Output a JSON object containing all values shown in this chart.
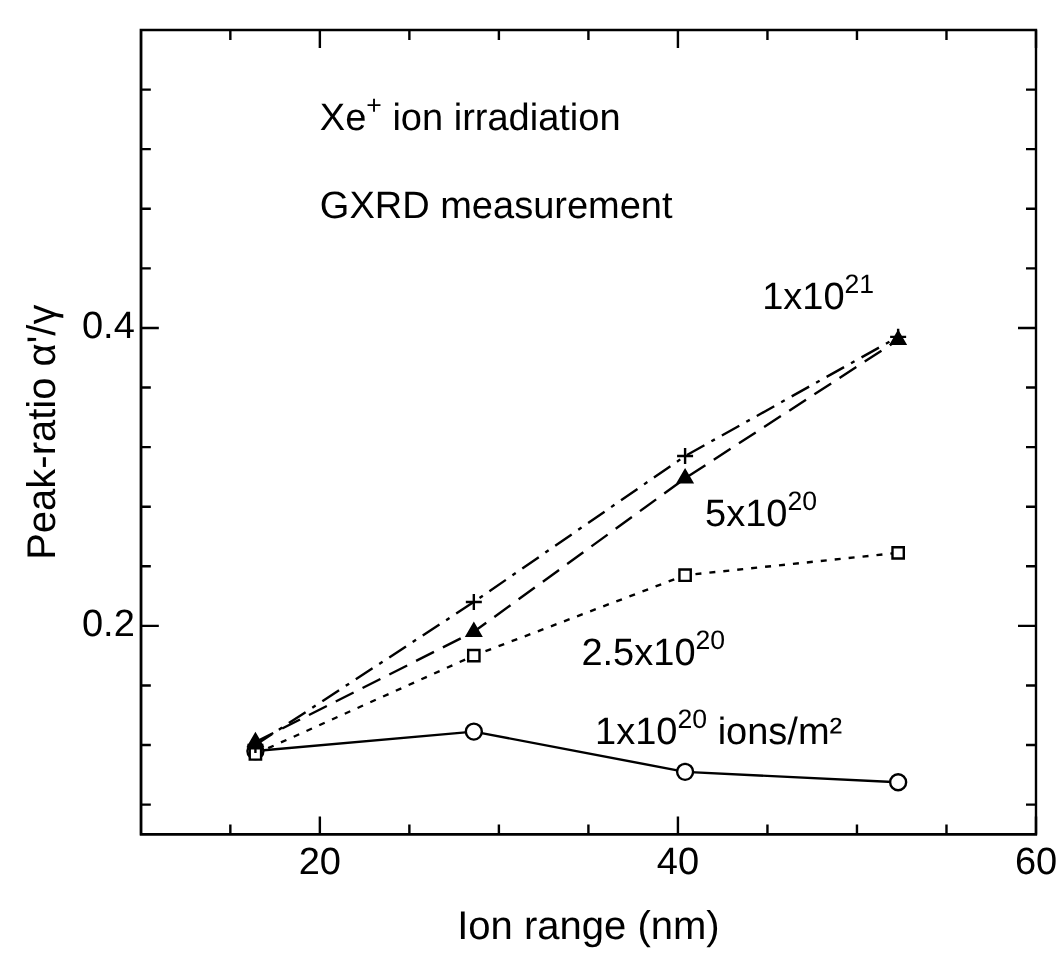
{
  "chart_data": {
    "type": "line",
    "xlabel": "Ion range (nm)",
    "ylabel": "Peak-ratio α'/γ",
    "x": [
      16.4,
      28.6,
      40.4,
      52.3
    ],
    "series": [
      {
        "name": "1x10$^{21}$",
        "color": "#000000",
        "marker": "cross",
        "line_style": "dashdot",
        "values": [
          0.12,
          0.216,
          0.314,
          0.394
        ]
      },
      {
        "name": "5x10$^{20}$",
        "color": "#000000",
        "marker": "triangle",
        "line_style": "dashed",
        "values": [
          0.122,
          0.196,
          0.299,
          0.392
        ]
      },
      {
        "name": "2.5x10$^{20}$",
        "color": "#000000",
        "marker": "square",
        "line_style": "dotted",
        "values": [
          0.114,
          0.18,
          0.234,
          0.249
        ]
      },
      {
        "name": "1x10$^{20}$ ions/m²",
        "color": "#000000",
        "marker": "circle",
        "line_style": "solid",
        "values": [
          0.116,
          0.129,
          0.102,
          0.095
        ]
      }
    ],
    "xlim": [
      10,
      60
    ],
    "xticks": [
      {
        "value": 15,
        "label": null
      },
      20,
      {
        "value": 25,
        "label": null
      },
      {
        "value": 30,
        "label": null
      },
      {
        "value": 35,
        "label": null
      },
      40,
      {
        "value": 45,
        "label": null
      },
      {
        "value": 50,
        "label": null
      },
      {
        "value": 55,
        "label": null
      },
      60
    ],
    "ylim": [
      0.06,
      0.6
    ],
    "yticks": [
      {
        "value": 0.08,
        "label": null
      },
      {
        "value": 0.12,
        "label": null
      },
      {
        "value": 0.16,
        "label": null
      },
      0.2,
      {
        "value": 0.24,
        "label": null
      },
      {
        "value": 0.28,
        "label": null
      },
      {
        "value": 0.32,
        "label": null
      },
      {
        "value": 0.36,
        "label": null
      },
      0.4,
      {
        "value": 0.44,
        "label": null
      },
      {
        "value": 0.48,
        "label": null
      },
      {
        "value": 0.52,
        "label": null
      },
      {
        "value": 0.56,
        "label": null
      }
    ],
    "annotations": [
      "Xe$^{+}$ ion irradiation",
      "GXRD measurement"
    ],
    "grid": false,
    "legend": false
  }
}
